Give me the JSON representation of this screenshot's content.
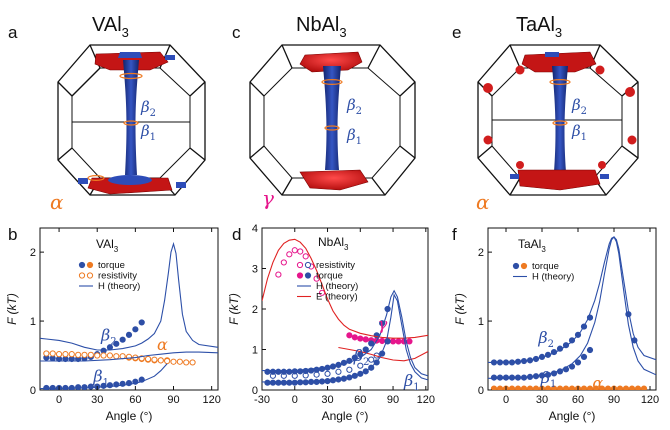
{
  "top_panels": [
    {
      "letter": "a",
      "material": "VAl",
      "sub": "3",
      "orbit_labels": [
        "β",
        "β"
      ],
      "orbit_subs": [
        "2",
        "1"
      ],
      "pocket_label": "α",
      "pocket_color": "#ee7a22"
    },
    {
      "letter": "c",
      "material": "NbAl",
      "sub": "3",
      "orbit_labels": [
        "β",
        "β"
      ],
      "orbit_subs": [
        "2",
        "1"
      ],
      "pocket_label": "γ",
      "pocket_color": "#e6168c"
    },
    {
      "letter": "e",
      "material": "TaAl",
      "sub": "3",
      "orbit_labels": [
        "β",
        "β"
      ],
      "orbit_subs": [
        "2",
        "1"
      ],
      "pocket_label": "α",
      "pocket_color": "#ee7a22"
    }
  ],
  "colors": {
    "blue_fill": "#2e4fa6",
    "orange": "#ee7a22",
    "magenta": "#e6168c",
    "red": "#e02222",
    "theory_blue": "#2c4fa8",
    "dark": "#1a1a1a"
  },
  "chart_data": [
    {
      "type": "scatter",
      "letter": "b",
      "title": "VAl",
      "title_sub": "3",
      "ylabel": "F (kT)",
      "xlabel": "Angle (°)",
      "xlim": [
        -15,
        125
      ],
      "ylim": [
        0,
        2.35
      ],
      "xticks": [
        "0",
        "30",
        "60",
        "90",
        "120"
      ],
      "yticks": [
        "0",
        "1",
        "2"
      ],
      "legend": [
        "torque",
        "resistivity",
        "H (theory)"
      ],
      "labels": [
        {
          "t": "β",
          "sub": "2",
          "x": 33,
          "y": 0.72,
          "color": "#2e4fa6"
        },
        {
          "t": "β",
          "sub": "1",
          "x": 27,
          "y": 0.12,
          "color": "#2e4fa6"
        },
        {
          "t": "α",
          "sub": "",
          "x": 77,
          "y": 0.58,
          "color": "#ee7a22"
        }
      ],
      "series": [
        {
          "name": "torque",
          "style": "filled",
          "color": "#2e4fa6",
          "x": [
            -10,
            -5,
            0,
            5,
            10,
            15,
            20,
            25,
            30,
            35,
            40,
            45,
            50,
            55,
            60,
            65
          ],
          "y": [
            0.47,
            0.46,
            0.45,
            0.45,
            0.45,
            0.45,
            0.46,
            0.48,
            0.52,
            0.57,
            0.62,
            0.67,
            0.73,
            0.8,
            0.88,
            0.98
          ]
        },
        {
          "name": "torque",
          "style": "filled",
          "color": "#2e4fa6",
          "x": [
            -10,
            -5,
            0,
            5,
            10,
            15,
            20,
            25,
            30,
            35,
            40,
            45,
            50,
            55,
            60,
            65
          ],
          "y": [
            0.03,
            0.03,
            0.03,
            0.03,
            0.03,
            0.04,
            0.04,
            0.05,
            0.05,
            0.06,
            0.07,
            0.08,
            0.09,
            0.1,
            0.12,
            0.15
          ]
        },
        {
          "name": "torque",
          "style": "filled",
          "color": "#ee7a22",
          "x": [
            55,
            60,
            65,
            70,
            75,
            80,
            85
          ],
          "y": [
            0.47,
            0.46,
            0.45,
            0.44,
            0.43,
            0.43,
            0.43
          ]
        },
        {
          "name": "resistivity",
          "style": "open",
          "color": "#ee7a22",
          "x": [
            -10,
            -5,
            0,
            5,
            10,
            15,
            20,
            25,
            30,
            35,
            40,
            45,
            50,
            55,
            60,
            65,
            70,
            75,
            80,
            85,
            90,
            95,
            100,
            105
          ],
          "y": [
            0.53,
            0.53,
            0.52,
            0.52,
            0.52,
            0.51,
            0.51,
            0.51,
            0.5,
            0.5,
            0.5,
            0.49,
            0.49,
            0.48,
            0.47,
            0.46,
            0.45,
            0.44,
            0.43,
            0.42,
            0.41,
            0.41,
            0.4,
            0.4
          ]
        },
        {
          "name": "H (theory)",
          "style": "line",
          "color": "#2c4fa8",
          "x": [
            -15,
            -10,
            0,
            10,
            20,
            30,
            40,
            50,
            60,
            65,
            70,
            75,
            80,
            83,
            86,
            88,
            90,
            92,
            94,
            97,
            100,
            105,
            110,
            125
          ],
          "y": [
            0.75,
            0.74,
            0.72,
            0.68,
            0.62,
            0.58,
            0.58,
            0.6,
            0.64,
            0.68,
            0.74,
            0.82,
            1.0,
            1.3,
            1.7,
            2.0,
            2.12,
            1.98,
            1.6,
            1.1,
            0.85,
            0.72,
            0.66,
            0.62
          ]
        },
        {
          "name": "H (theory)",
          "style": "line",
          "color": "#2c4fa8",
          "x": [
            -15,
            0,
            20,
            40,
            60,
            70,
            80,
            90,
            100,
            110,
            125
          ],
          "y": [
            0.42,
            0.42,
            0.42,
            0.44,
            0.47,
            0.5,
            0.52,
            0.54,
            0.55,
            0.55,
            0.54
          ]
        },
        {
          "name": "H (theory)",
          "style": "line",
          "color": "#2c4fa8",
          "x": [
            -15,
            0,
            20,
            40,
            55,
            65,
            75,
            80,
            85
          ],
          "y": [
            0.02,
            0.02,
            0.03,
            0.05,
            0.08,
            0.12,
            0.2,
            0.28,
            0.38
          ]
        }
      ]
    },
    {
      "type": "scatter",
      "letter": "d",
      "title": "NbAl",
      "title_sub": "3",
      "ylabel": "F (kT)",
      "xlabel": "Angle (°)",
      "xlim": [
        -30,
        122
      ],
      "ylim": [
        0,
        4
      ],
      "xticks": [
        "-30",
        "0",
        "30",
        "60",
        "90",
        "120"
      ],
      "yticks": [
        "0",
        "1",
        "2",
        "3",
        "4"
      ],
      "legend": [
        "resistivity",
        "torque",
        "H (theory)",
        "E (theory)"
      ],
      "labels": [
        {
          "t": "β",
          "sub": "2",
          "x": 54,
          "y": 0.72,
          "color": "#2e4fa6"
        },
        {
          "t": "β",
          "sub": "1",
          "x": 100,
          "y": 0.1,
          "color": "#2e4fa6"
        },
        {
          "t": "γ",
          "sub": "",
          "x": 76,
          "y": 1.5,
          "color": "#e6168c"
        }
      ],
      "series": [
        {
          "name": "resistivity",
          "style": "open",
          "color": "#e6168c",
          "x": [
            -15,
            -10,
            -5,
            0,
            5,
            10,
            15,
            20,
            25
          ],
          "y": [
            2.85,
            3.15,
            3.35,
            3.45,
            3.42,
            3.3,
            3.05,
            2.75,
            2.4
          ]
        },
        {
          "name": "resistivity",
          "style": "open",
          "color": "#2e4fa6",
          "x": [
            -20,
            -10,
            0,
            10,
            20,
            30,
            40,
            50,
            60,
            70,
            75
          ],
          "y": [
            0.35,
            0.35,
            0.35,
            0.36,
            0.38,
            0.4,
            0.45,
            0.5,
            0.6,
            0.75,
            0.85
          ]
        },
        {
          "name": "torque",
          "style": "filled",
          "color": "#e6168c",
          "x": [
            50,
            55,
            60,
            65,
            70,
            75,
            80,
            85,
            90,
            95,
            100,
            105
          ],
          "y": [
            1.35,
            1.3,
            1.27,
            1.25,
            1.23,
            1.22,
            1.21,
            1.21,
            1.2,
            1.2,
            1.2,
            1.2
          ]
        },
        {
          "name": "torque",
          "style": "filled",
          "color": "#2e4fa6",
          "x": [
            -25,
            -20,
            -15,
            -10,
            -5,
            0,
            5,
            10,
            15,
            20,
            25,
            30,
            35,
            40,
            45,
            50,
            55,
            60,
            65,
            70,
            75,
            80,
            85
          ],
          "y": [
            0.45,
            0.45,
            0.45,
            0.45,
            0.45,
            0.46,
            0.46,
            0.47,
            0.48,
            0.5,
            0.52,
            0.55,
            0.58,
            0.62,
            0.67,
            0.72,
            0.8,
            0.88,
            1.0,
            1.15,
            1.35,
            1.65,
            2.0
          ]
        },
        {
          "name": "torque",
          "style": "filled",
          "color": "#2e4fa6",
          "x": [
            -25,
            -20,
            -15,
            -10,
            -5,
            0,
            5,
            10,
            15,
            20,
            25,
            30,
            35,
            40,
            45,
            50,
            55,
            60,
            65,
            70,
            75,
            80,
            85
          ],
          "y": [
            0.18,
            0.18,
            0.18,
            0.18,
            0.18,
            0.18,
            0.19,
            0.19,
            0.2,
            0.2,
            0.21,
            0.22,
            0.24,
            0.26,
            0.28,
            0.31,
            0.35,
            0.4,
            0.46,
            0.55,
            0.68,
            0.9,
            1.2
          ]
        },
        {
          "name": "E (theory)",
          "style": "line",
          "color": "#e02222",
          "x": [
            -30,
            -25,
            -20,
            -15,
            -10,
            -5,
            0,
            5,
            10,
            15,
            20,
            25,
            30,
            35,
            40,
            45,
            50,
            60,
            70,
            80,
            90,
            100,
            110,
            122
          ],
          "y": [
            2.2,
            2.75,
            3.15,
            3.45,
            3.62,
            3.7,
            3.72,
            3.65,
            3.5,
            3.25,
            2.95,
            2.6,
            2.25,
            1.95,
            1.75,
            1.6,
            1.5,
            1.4,
            1.34,
            1.3,
            1.28,
            1.28,
            1.3,
            1.35
          ]
        },
        {
          "name": "E (theory)",
          "style": "line",
          "color": "#e02222",
          "x": [
            40,
            50,
            60,
            70,
            80,
            90,
            100,
            110,
            122
          ],
          "y": [
            1.05,
            1.0,
            0.95,
            0.88,
            0.8,
            0.74,
            0.72,
            0.78,
            0.95
          ]
        },
        {
          "name": "H (theory)",
          "style": "line",
          "color": "#2c4fa8",
          "x": [
            -30,
            0,
            30,
            50,
            60,
            70,
            78,
            84,
            88,
            91,
            94,
            98,
            102,
            106,
            110,
            116,
            122
          ],
          "y": [
            0.48,
            0.48,
            0.56,
            0.68,
            0.8,
            1.0,
            1.35,
            1.85,
            2.3,
            2.45,
            2.3,
            1.8,
            1.2,
            0.8,
            0.55,
            0.4,
            0.35
          ]
        },
        {
          "name": "H (theory)",
          "style": "line",
          "color": "#2c4fa8",
          "x": [
            -30,
            0,
            30,
            50,
            60,
            70,
            78,
            84,
            88,
            91,
            94,
            98,
            102,
            106,
            110,
            116,
            122
          ],
          "y": [
            0.2,
            0.2,
            0.24,
            0.32,
            0.4,
            0.55,
            0.8,
            1.2,
            1.8,
            2.35,
            2.2,
            1.6,
            1.0,
            0.65,
            0.45,
            0.3,
            0.25
          ]
        }
      ]
    },
    {
      "type": "scatter",
      "letter": "f",
      "title": "TaAl",
      "title_sub": "3",
      "ylabel": "F (kT)",
      "xlabel": "Angle (°)",
      "xlim": [
        -15,
        125
      ],
      "ylim": [
        0,
        2.35
      ],
      "xticks": [
        "0",
        "30",
        "60",
        "90",
        "120"
      ],
      "yticks": [
        "0",
        "1",
        "2"
      ],
      "legend": [
        "torque",
        "H (theory)"
      ],
      "labels": [
        {
          "t": "β",
          "sub": "2",
          "x": 27,
          "y": 0.68,
          "color": "#2e4fa6"
        },
        {
          "t": "β",
          "sub": "1",
          "x": 29,
          "y": 0.1,
          "color": "#2e4fa6"
        },
        {
          "t": "α",
          "sub": "",
          "x": 72,
          "y": 0.02,
          "color": "#ee7a22"
        }
      ],
      "series": [
        {
          "name": "torque",
          "style": "filled",
          "color": "#2e4fa6",
          "x": [
            -10,
            -5,
            0,
            5,
            10,
            15,
            20,
            25,
            30,
            35,
            40,
            45,
            50,
            55,
            60,
            65,
            70
          ],
          "y": [
            0.4,
            0.4,
            0.4,
            0.4,
            0.41,
            0.42,
            0.43,
            0.45,
            0.48,
            0.51,
            0.55,
            0.6,
            0.65,
            0.72,
            0.8,
            0.92,
            1.05
          ]
        },
        {
          "name": "torque",
          "style": "filled",
          "color": "#2e4fa6",
          "x": [
            -10,
            -5,
            0,
            5,
            10,
            15,
            20,
            25,
            30,
            35,
            40,
            45,
            50,
            55,
            60,
            65,
            70
          ],
          "y": [
            0.18,
            0.18,
            0.18,
            0.18,
            0.18,
            0.18,
            0.19,
            0.2,
            0.21,
            0.22,
            0.24,
            0.27,
            0.3,
            0.34,
            0.4,
            0.48,
            0.58
          ]
        },
        {
          "name": "torque",
          "style": "filled",
          "color": "#2e4fa6",
          "x": [
            102,
            107
          ],
          "y": [
            1.1,
            0.72
          ]
        },
        {
          "name": "torque",
          "style": "filled",
          "color": "#ee7a22",
          "x": [
            -10,
            -5,
            0,
            5,
            10,
            15,
            20,
            25,
            30,
            35,
            40,
            45,
            50,
            55,
            60,
            65,
            70,
            75,
            80,
            85,
            90,
            95,
            100,
            105,
            110,
            115
          ],
          "y": [
            0.02,
            0.02,
            0.02,
            0.02,
            0.02,
            0.02,
            0.02,
            0.02,
            0.02,
            0.02,
            0.02,
            0.02,
            0.02,
            0.02,
            0.02,
            0.02,
            0.02,
            0.02,
            0.02,
            0.02,
            0.02,
            0.02,
            0.02,
            0.02,
            0.02,
            0.02
          ]
        },
        {
          "name": "H (theory)",
          "style": "line",
          "color": "#2c4fa8",
          "x": [
            -15,
            0,
            20,
            35,
            45,
            55,
            62,
            68,
            74,
            78,
            82,
            86,
            88,
            90,
            92,
            94,
            98,
            102,
            106,
            110,
            115,
            125
          ],
          "y": [
            0.4,
            0.4,
            0.43,
            0.5,
            0.58,
            0.7,
            0.84,
            1.02,
            1.3,
            1.55,
            1.85,
            2.12,
            2.2,
            2.22,
            2.18,
            2.05,
            1.6,
            1.15,
            0.82,
            0.62,
            0.5,
            0.44
          ]
        },
        {
          "name": "H (theory)",
          "style": "line",
          "color": "#2c4fa8",
          "x": [
            -15,
            0,
            20,
            35,
            45,
            55,
            62,
            68,
            74,
            78,
            82,
            86,
            88,
            90,
            92,
            94,
            98,
            102,
            106,
            110,
            115,
            125
          ],
          "y": [
            0.17,
            0.17,
            0.19,
            0.23,
            0.28,
            0.38,
            0.5,
            0.68,
            0.98,
            1.28,
            1.68,
            2.05,
            2.18,
            2.22,
            2.15,
            1.98,
            1.45,
            0.95,
            0.62,
            0.42,
            0.3,
            0.22
          ]
        }
      ]
    }
  ]
}
